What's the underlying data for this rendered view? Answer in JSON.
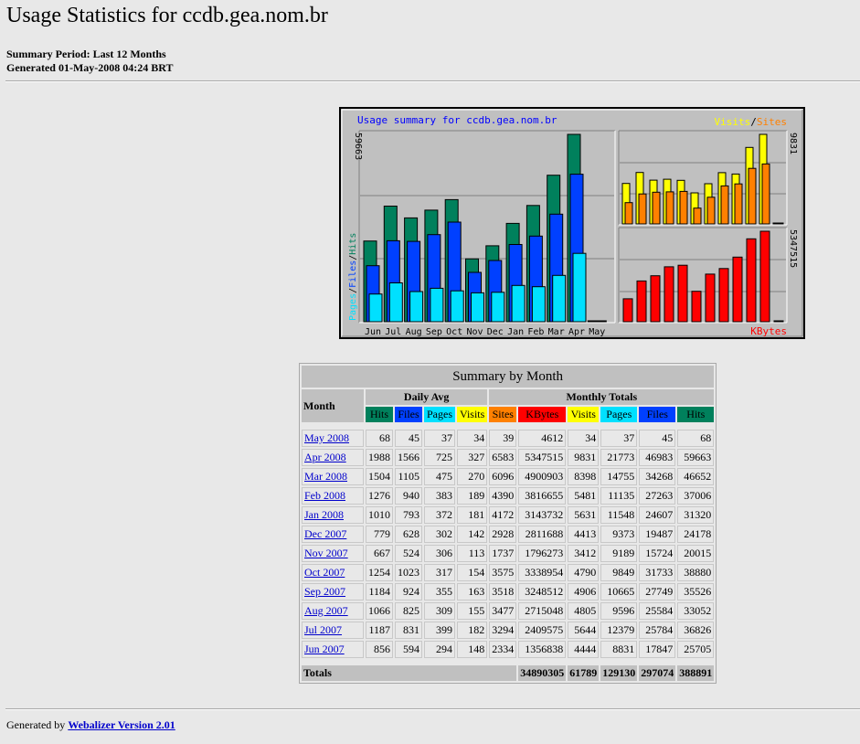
{
  "page": {
    "title": "Usage Statistics for ccdb.gea.nom.br",
    "period": "Summary Period: Last 12 Months",
    "generated": "Generated 01-May-2008 04:24 BRT",
    "footer_prefix": "Generated by ",
    "footer_link": "Webalizer Version 2.01"
  },
  "colors": {
    "hits": "#00805c",
    "files": "#0040ff",
    "pages": "#00e0ff",
    "visits": "#ffff00",
    "sites": "#ff8000",
    "kbytes": "#ff0000",
    "graph_title": "#0000ff"
  },
  "chart_data": {
    "type": "bar",
    "title": "Usage summary for ccdb.gea.nom.br",
    "categories": [
      "Jun",
      "Jul",
      "Aug",
      "Sep",
      "Oct",
      "Nov",
      "Dec",
      "Jan",
      "Feb",
      "Mar",
      "Apr",
      "May"
    ],
    "left_panel": {
      "ylabel_parts": [
        "Pages",
        "Files",
        "Hits"
      ],
      "ymax_label": "59663",
      "ymax": 59663,
      "series": [
        {
          "name": "Hits",
          "values": [
            25705,
            36826,
            33052,
            35526,
            38880,
            20015,
            24178,
            31320,
            37006,
            46652,
            59663,
            68
          ]
        },
        {
          "name": "Files",
          "values": [
            17847,
            25784,
            25584,
            27749,
            31733,
            15724,
            19487,
            24607,
            27263,
            34268,
            46983,
            45
          ]
        },
        {
          "name": "Pages",
          "values": [
            8831,
            12379,
            9596,
            10665,
            9849,
            9189,
            9373,
            11548,
            11135,
            14755,
            21773,
            37
          ]
        }
      ]
    },
    "right_top_panel": {
      "legend_parts": [
        "Visits",
        "Sites"
      ],
      "ymax_label": "9831",
      "ymax": 9831,
      "series": [
        {
          "name": "Visits",
          "values": [
            4444,
            5644,
            4805,
            4906,
            4790,
            3412,
            4413,
            5631,
            5481,
            8398,
            9831,
            34
          ]
        },
        {
          "name": "Sites",
          "values": [
            2334,
            3294,
            3477,
            3518,
            3575,
            1737,
            2928,
            4172,
            4390,
            6096,
            6583,
            39
          ]
        }
      ]
    },
    "right_bottom_panel": {
      "legend": "KBytes",
      "ymax_label": "5347515",
      "ymax": 5347515,
      "series": [
        {
          "name": "KBytes",
          "values": [
            1356838,
            2409575,
            2715048,
            3248512,
            3338954,
            1796273,
            2811688,
            3143732,
            3816655,
            4900903,
            5347515,
            4612
          ]
        }
      ]
    }
  },
  "table": {
    "caption": "Summary by Month",
    "month_header": "Month",
    "daily_avg_header": "Daily Avg",
    "monthly_totals_header": "Monthly Totals",
    "daily_columns": [
      "Hits",
      "Files",
      "Pages",
      "Visits"
    ],
    "monthly_columns": [
      "Sites",
      "KBytes",
      "Visits",
      "Pages",
      "Files",
      "Hits"
    ],
    "rows": [
      {
        "month": "May 2008",
        "values": [
          "68",
          "45",
          "37",
          "34",
          "39",
          "4612",
          "34",
          "37",
          "45",
          "68"
        ]
      },
      {
        "month": "Apr 2008",
        "values": [
          "1988",
          "1566",
          "725",
          "327",
          "6583",
          "5347515",
          "9831",
          "21773",
          "46983",
          "59663"
        ]
      },
      {
        "month": "Mar 2008",
        "values": [
          "1504",
          "1105",
          "475",
          "270",
          "6096",
          "4900903",
          "8398",
          "14755",
          "34268",
          "46652"
        ]
      },
      {
        "month": "Feb 2008",
        "values": [
          "1276",
          "940",
          "383",
          "189",
          "4390",
          "3816655",
          "5481",
          "11135",
          "27263",
          "37006"
        ]
      },
      {
        "month": "Jan 2008",
        "values": [
          "1010",
          "793",
          "372",
          "181",
          "4172",
          "3143732",
          "5631",
          "11548",
          "24607",
          "31320"
        ]
      },
      {
        "month": "Dec 2007",
        "values": [
          "779",
          "628",
          "302",
          "142",
          "2928",
          "2811688",
          "4413",
          "9373",
          "19487",
          "24178"
        ]
      },
      {
        "month": "Nov 2007",
        "values": [
          "667",
          "524",
          "306",
          "113",
          "1737",
          "1796273",
          "3412",
          "9189",
          "15724",
          "20015"
        ]
      },
      {
        "month": "Oct 2007",
        "values": [
          "1254",
          "1023",
          "317",
          "154",
          "3575",
          "3338954",
          "4790",
          "9849",
          "31733",
          "38880"
        ]
      },
      {
        "month": "Sep 2007",
        "values": [
          "1184",
          "924",
          "355",
          "163",
          "3518",
          "3248512",
          "4906",
          "10665",
          "27749",
          "35526"
        ]
      },
      {
        "month": "Aug 2007",
        "values": [
          "1066",
          "825",
          "309",
          "155",
          "3477",
          "2715048",
          "4805",
          "9596",
          "25584",
          "33052"
        ]
      },
      {
        "month": "Jul 2007",
        "values": [
          "1187",
          "831",
          "399",
          "182",
          "3294",
          "2409575",
          "5644",
          "12379",
          "25784",
          "36826"
        ]
      },
      {
        "month": "Jun 2007",
        "values": [
          "856",
          "594",
          "294",
          "148",
          "2334",
          "1356838",
          "4444",
          "8831",
          "17847",
          "25705"
        ]
      }
    ],
    "totals_label": "Totals",
    "totals": [
      "34890305",
      "61789",
      "129130",
      "297074",
      "388891"
    ]
  }
}
